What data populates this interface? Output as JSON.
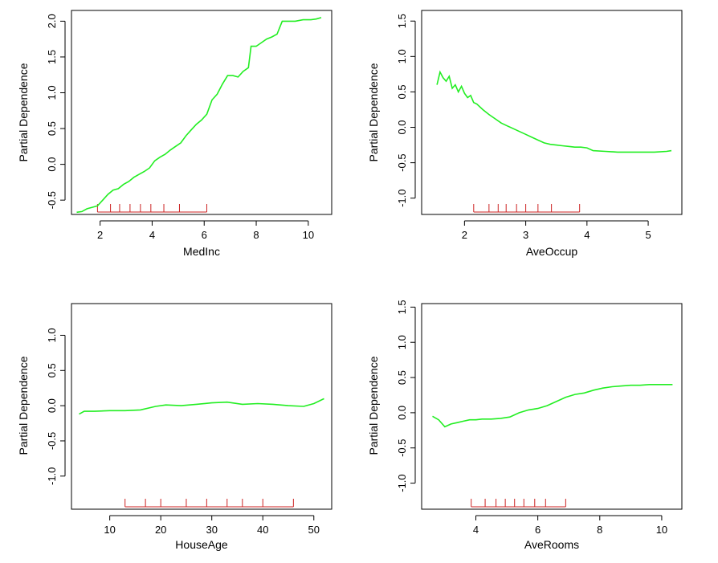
{
  "colors": {
    "series": "#22ee22",
    "rug": "#cc2222",
    "axis": "#000000",
    "background": "#ffffff"
  },
  "chart_data": [
    {
      "type": "line",
      "xlabel": "MedInc",
      "ylabel": "Partial Dependence",
      "xlim": [
        0.9,
        10.9
      ],
      "ylim": [
        -0.7,
        2.15
      ],
      "xticks": [
        2,
        4,
        6,
        8,
        10
      ],
      "yticks": [
        -0.5,
        0.0,
        0.5,
        1.0,
        1.5,
        2.0
      ],
      "rug": [
        1.9,
        2.4,
        2.75,
        3.15,
        3.55,
        3.95,
        4.45,
        5.05,
        6.1
      ],
      "series": [
        {
          "name": "MedInc",
          "x": [
            1.1,
            1.3,
            1.5,
            1.7,
            1.9,
            2.1,
            2.3,
            2.5,
            2.7,
            2.9,
            3.1,
            3.3,
            3.5,
            3.7,
            3.9,
            4.1,
            4.3,
            4.5,
            4.7,
            4.9,
            5.1,
            5.3,
            5.5,
            5.7,
            5.9,
            6.1,
            6.3,
            6.5,
            6.7,
            6.9,
            7.1,
            7.3,
            7.5,
            7.7,
            7.8,
            8.0,
            8.2,
            8.4,
            8.6,
            8.8,
            9.0,
            9.2,
            9.5,
            9.8,
            10.1,
            10.3,
            10.5
          ],
          "y": [
            -0.67,
            -0.66,
            -0.62,
            -0.6,
            -0.58,
            -0.5,
            -0.42,
            -0.36,
            -0.34,
            -0.28,
            -0.24,
            -0.18,
            -0.14,
            -0.1,
            -0.05,
            0.05,
            0.1,
            0.14,
            0.2,
            0.25,
            0.3,
            0.4,
            0.48,
            0.56,
            0.62,
            0.7,
            0.9,
            0.98,
            1.12,
            1.24,
            1.24,
            1.22,
            1.3,
            1.35,
            1.65,
            1.65,
            1.7,
            1.75,
            1.78,
            1.82,
            2.0,
            2.0,
            2.0,
            2.02,
            2.02,
            2.03,
            2.05
          ]
        }
      ]
    },
    {
      "type": "line",
      "xlabel": "AveOccup",
      "ylabel": "Partial Dependence",
      "xlim": [
        1.3,
        5.55
      ],
      "ylim": [
        -1.23,
        1.65
      ],
      "xticks": [
        2,
        3,
        4,
        5
      ],
      "yticks": [
        -1.0,
        -0.5,
        0.0,
        0.5,
        1.0,
        1.5
      ],
      "rug": [
        2.15,
        2.4,
        2.55,
        2.68,
        2.85,
        3.0,
        3.2,
        3.42,
        3.88
      ],
      "series": [
        {
          "name": "AveOccup",
          "x": [
            1.55,
            1.6,
            1.65,
            1.7,
            1.75,
            1.8,
            1.85,
            1.9,
            1.95,
            2.0,
            2.05,
            2.1,
            2.15,
            2.2,
            2.3,
            2.4,
            2.5,
            2.6,
            2.7,
            2.8,
            2.9,
            3.0,
            3.1,
            3.2,
            3.3,
            3.4,
            3.5,
            3.6,
            3.7,
            3.8,
            3.9,
            4.0,
            4.1,
            4.3,
            4.5,
            4.8,
            5.1,
            5.3,
            5.38
          ],
          "y": [
            0.6,
            0.78,
            0.7,
            0.65,
            0.72,
            0.55,
            0.6,
            0.5,
            0.58,
            0.48,
            0.42,
            0.45,
            0.35,
            0.33,
            0.25,
            0.18,
            0.12,
            0.06,
            0.02,
            -0.02,
            -0.06,
            -0.1,
            -0.14,
            -0.18,
            -0.22,
            -0.24,
            -0.25,
            -0.26,
            -0.27,
            -0.28,
            -0.28,
            -0.29,
            -0.33,
            -0.34,
            -0.35,
            -0.35,
            -0.35,
            -0.34,
            -0.33
          ]
        }
      ]
    },
    {
      "type": "line",
      "xlabel": "HouseAge",
      "ylabel": "Partial Dependence",
      "xlim": [
        2.5,
        53.5
      ],
      "ylim": [
        -1.47,
        1.45
      ],
      "xticks": [
        10,
        20,
        30,
        40,
        50
      ],
      "yticks": [
        -1.0,
        -0.5,
        0.0,
        0.5,
        1.0
      ],
      "rug": [
        13,
        17,
        20,
        25,
        29,
        33,
        36,
        40,
        46
      ],
      "series": [
        {
          "name": "HouseAge",
          "x": [
            4,
            5,
            7,
            10,
            13,
            16,
            19,
            21,
            24,
            27,
            30,
            33,
            36,
            39,
            42,
            45,
            48,
            50,
            52
          ],
          "y": [
            -0.12,
            -0.08,
            -0.08,
            -0.07,
            -0.07,
            -0.06,
            -0.01,
            0.01,
            0.0,
            0.02,
            0.04,
            0.05,
            0.02,
            0.03,
            0.02,
            0.0,
            -0.01,
            0.03,
            0.1
          ]
        }
      ]
    },
    {
      "type": "line",
      "xlabel": "AveRooms",
      "ylabel": "Partial Dependence",
      "xlim": [
        2.25,
        10.65
      ],
      "ylim": [
        -1.37,
        1.55
      ],
      "xticks": [
        4,
        6,
        8,
        10
      ],
      "yticks": [
        -1.0,
        -0.5,
        0.0,
        0.5,
        1.0,
        1.5
      ],
      "rug": [
        3.85,
        4.3,
        4.65,
        4.95,
        5.25,
        5.55,
        5.9,
        6.25,
        6.9
      ],
      "series": [
        {
          "name": "AveRooms",
          "x": [
            2.6,
            2.8,
            3.0,
            3.2,
            3.4,
            3.6,
            3.8,
            4.0,
            4.2,
            4.5,
            4.8,
            5.1,
            5.4,
            5.7,
            6.0,
            6.3,
            6.6,
            6.9,
            7.2,
            7.5,
            7.8,
            8.1,
            8.4,
            8.7,
            9.0,
            9.3,
            9.6,
            9.9,
            10.2,
            10.35
          ],
          "y": [
            -0.05,
            -0.1,
            -0.2,
            -0.16,
            -0.14,
            -0.12,
            -0.1,
            -0.1,
            -0.09,
            -0.09,
            -0.08,
            -0.06,
            0.0,
            0.04,
            0.06,
            0.1,
            0.16,
            0.22,
            0.26,
            0.28,
            0.32,
            0.35,
            0.37,
            0.38,
            0.39,
            0.39,
            0.4,
            0.4,
            0.4,
            0.4
          ]
        }
      ]
    }
  ]
}
